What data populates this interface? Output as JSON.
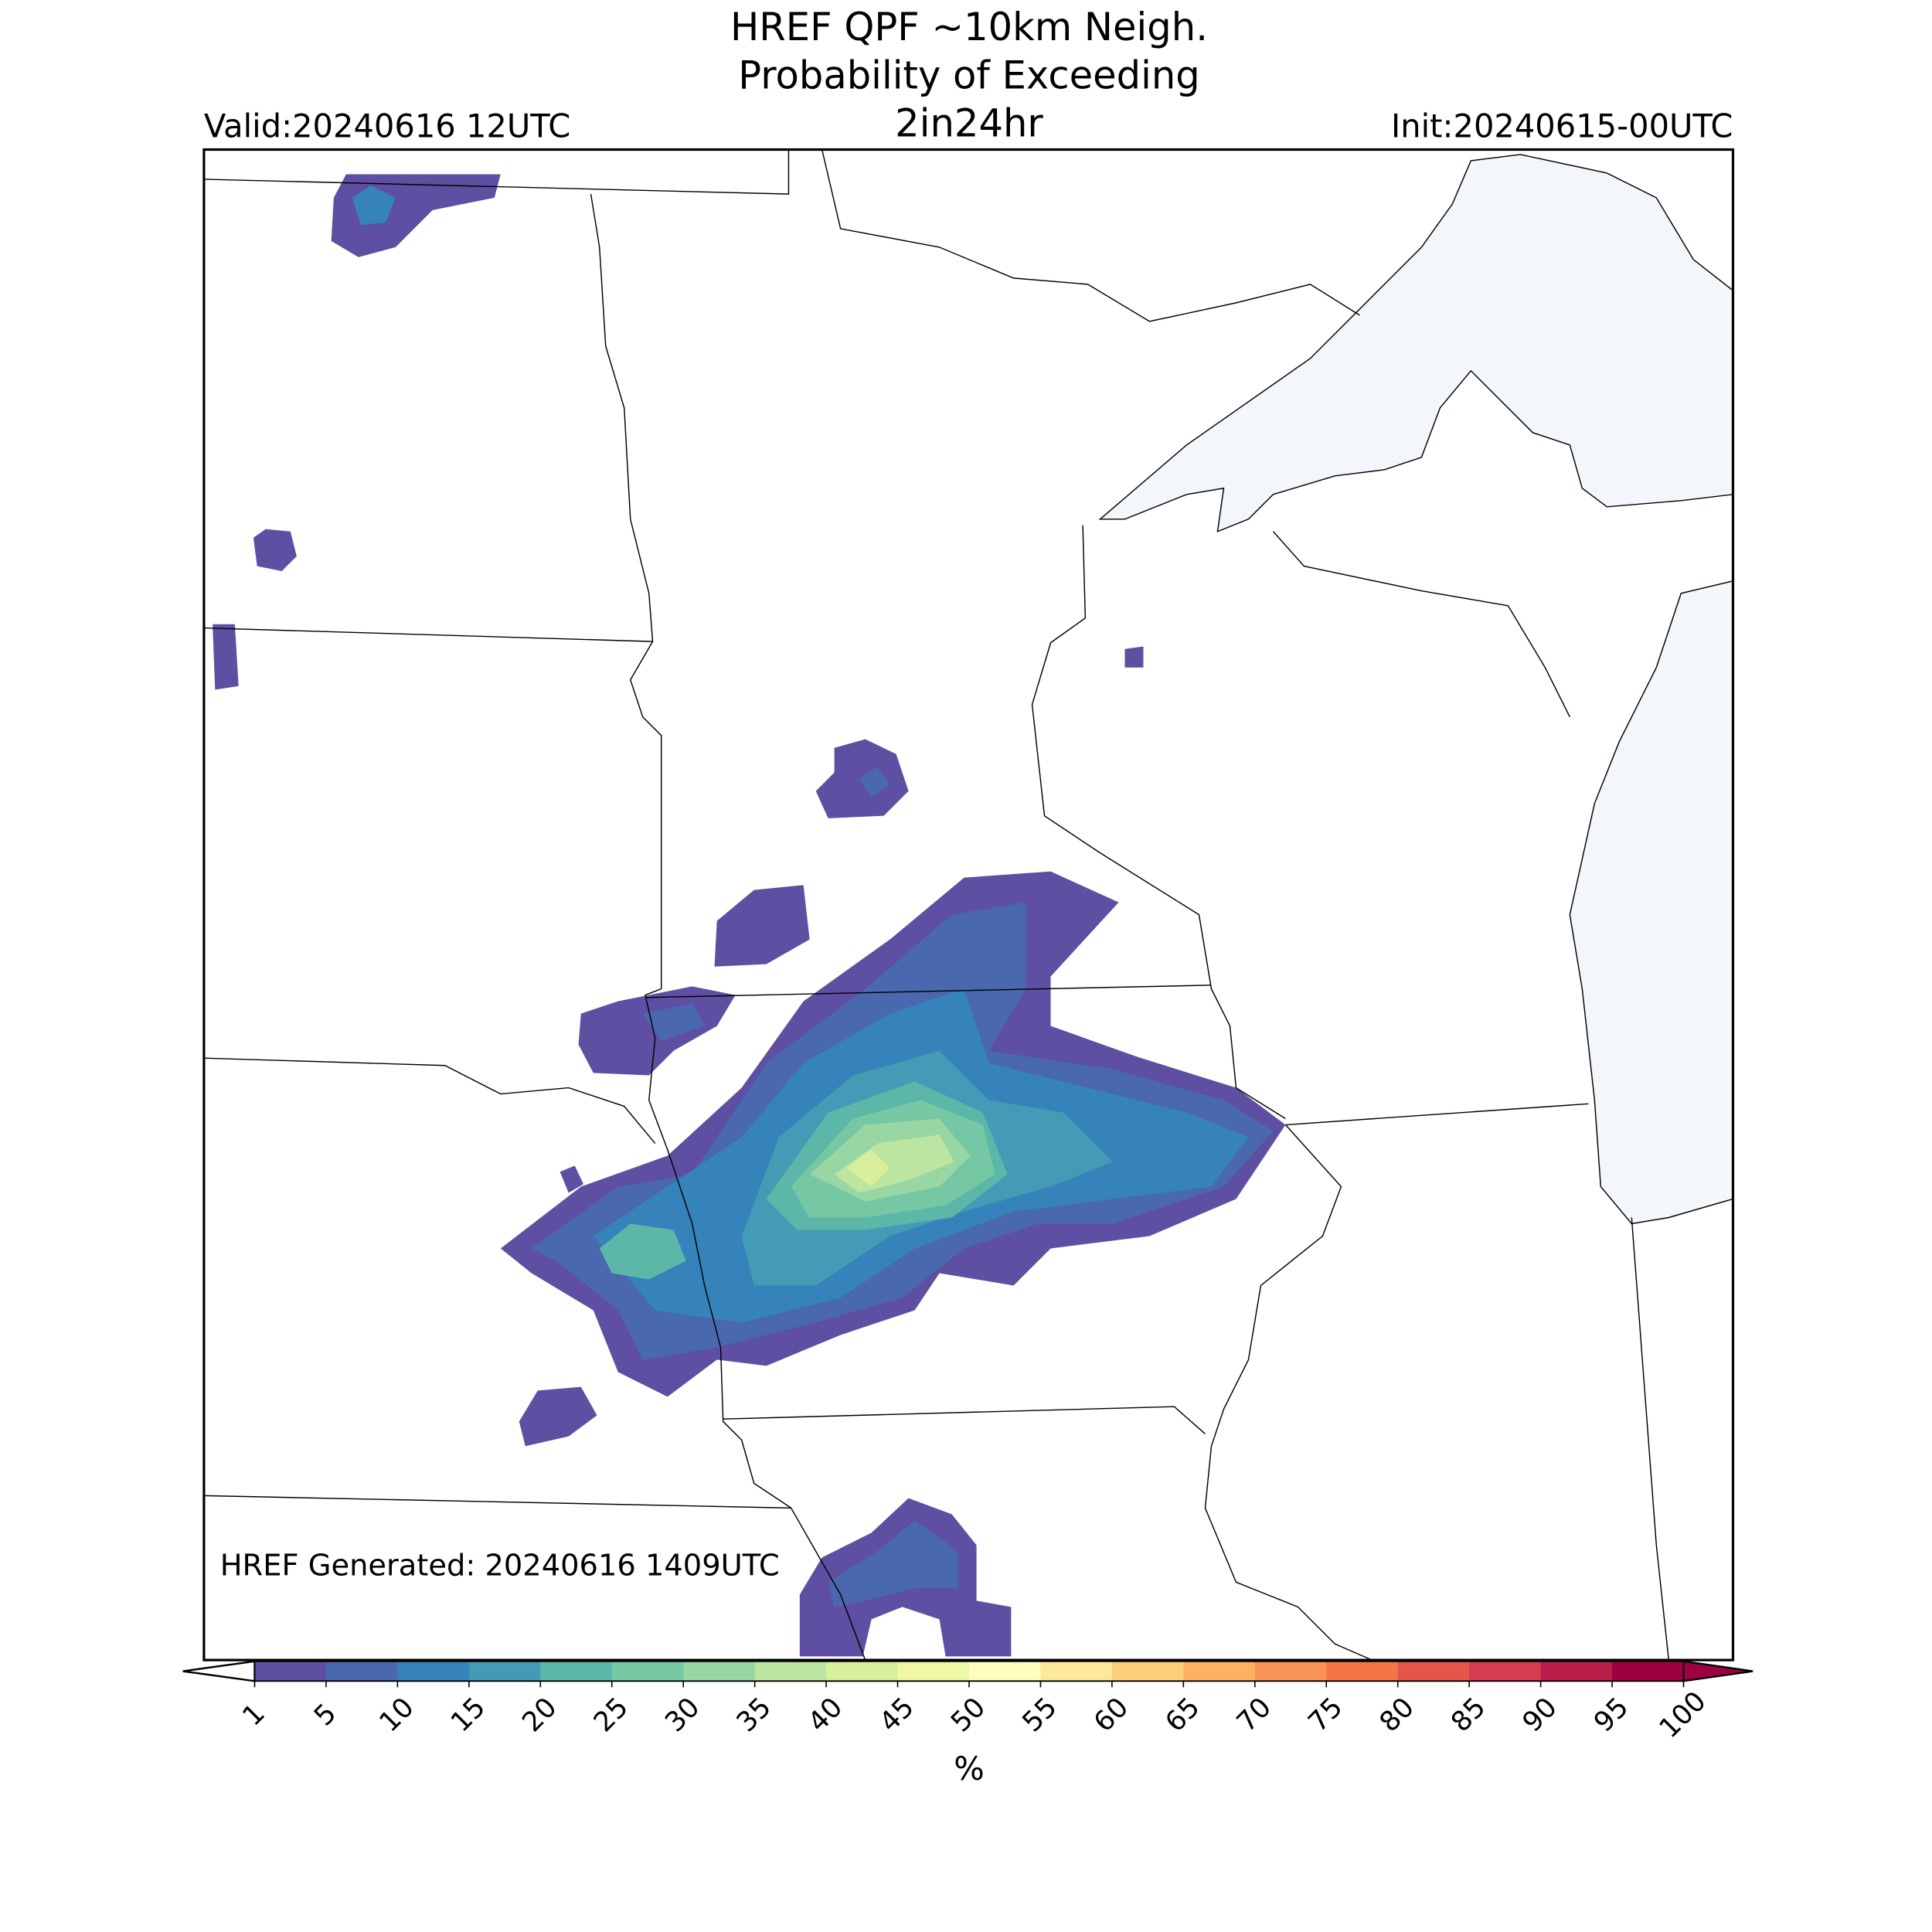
{
  "title": [
    "HREF QPF ~10km Neigh.",
    "Probability of Exceeding",
    "2in24hr"
  ],
  "valid": "Valid:20240616 12UTC",
  "init": "Init:20240615-00UTC",
  "generated": "HREF Generated: 20240616 1409UTC",
  "colorbar": {
    "levels": [
      1,
      5,
      10,
      15,
      20,
      25,
      30,
      35,
      40,
      45,
      50,
      55,
      60,
      65,
      70,
      75,
      80,
      85,
      90,
      95,
      100
    ],
    "colors": [
      "#5e4fa2",
      "#4a68ad",
      "#3682ba",
      "#439bb5",
      "#5db7a9",
      "#76c8a5",
      "#98d6a4",
      "#bbe5a0",
      "#d8ef9b",
      "#eff8a6",
      "#fffebe",
      "#fee89a",
      "#fece7c",
      "#fdb163",
      "#f99355",
      "#f57547",
      "#e55649",
      "#d43d4f",
      "#b91e48",
      "#9e0142"
    ],
    "label": "%"
  }
}
